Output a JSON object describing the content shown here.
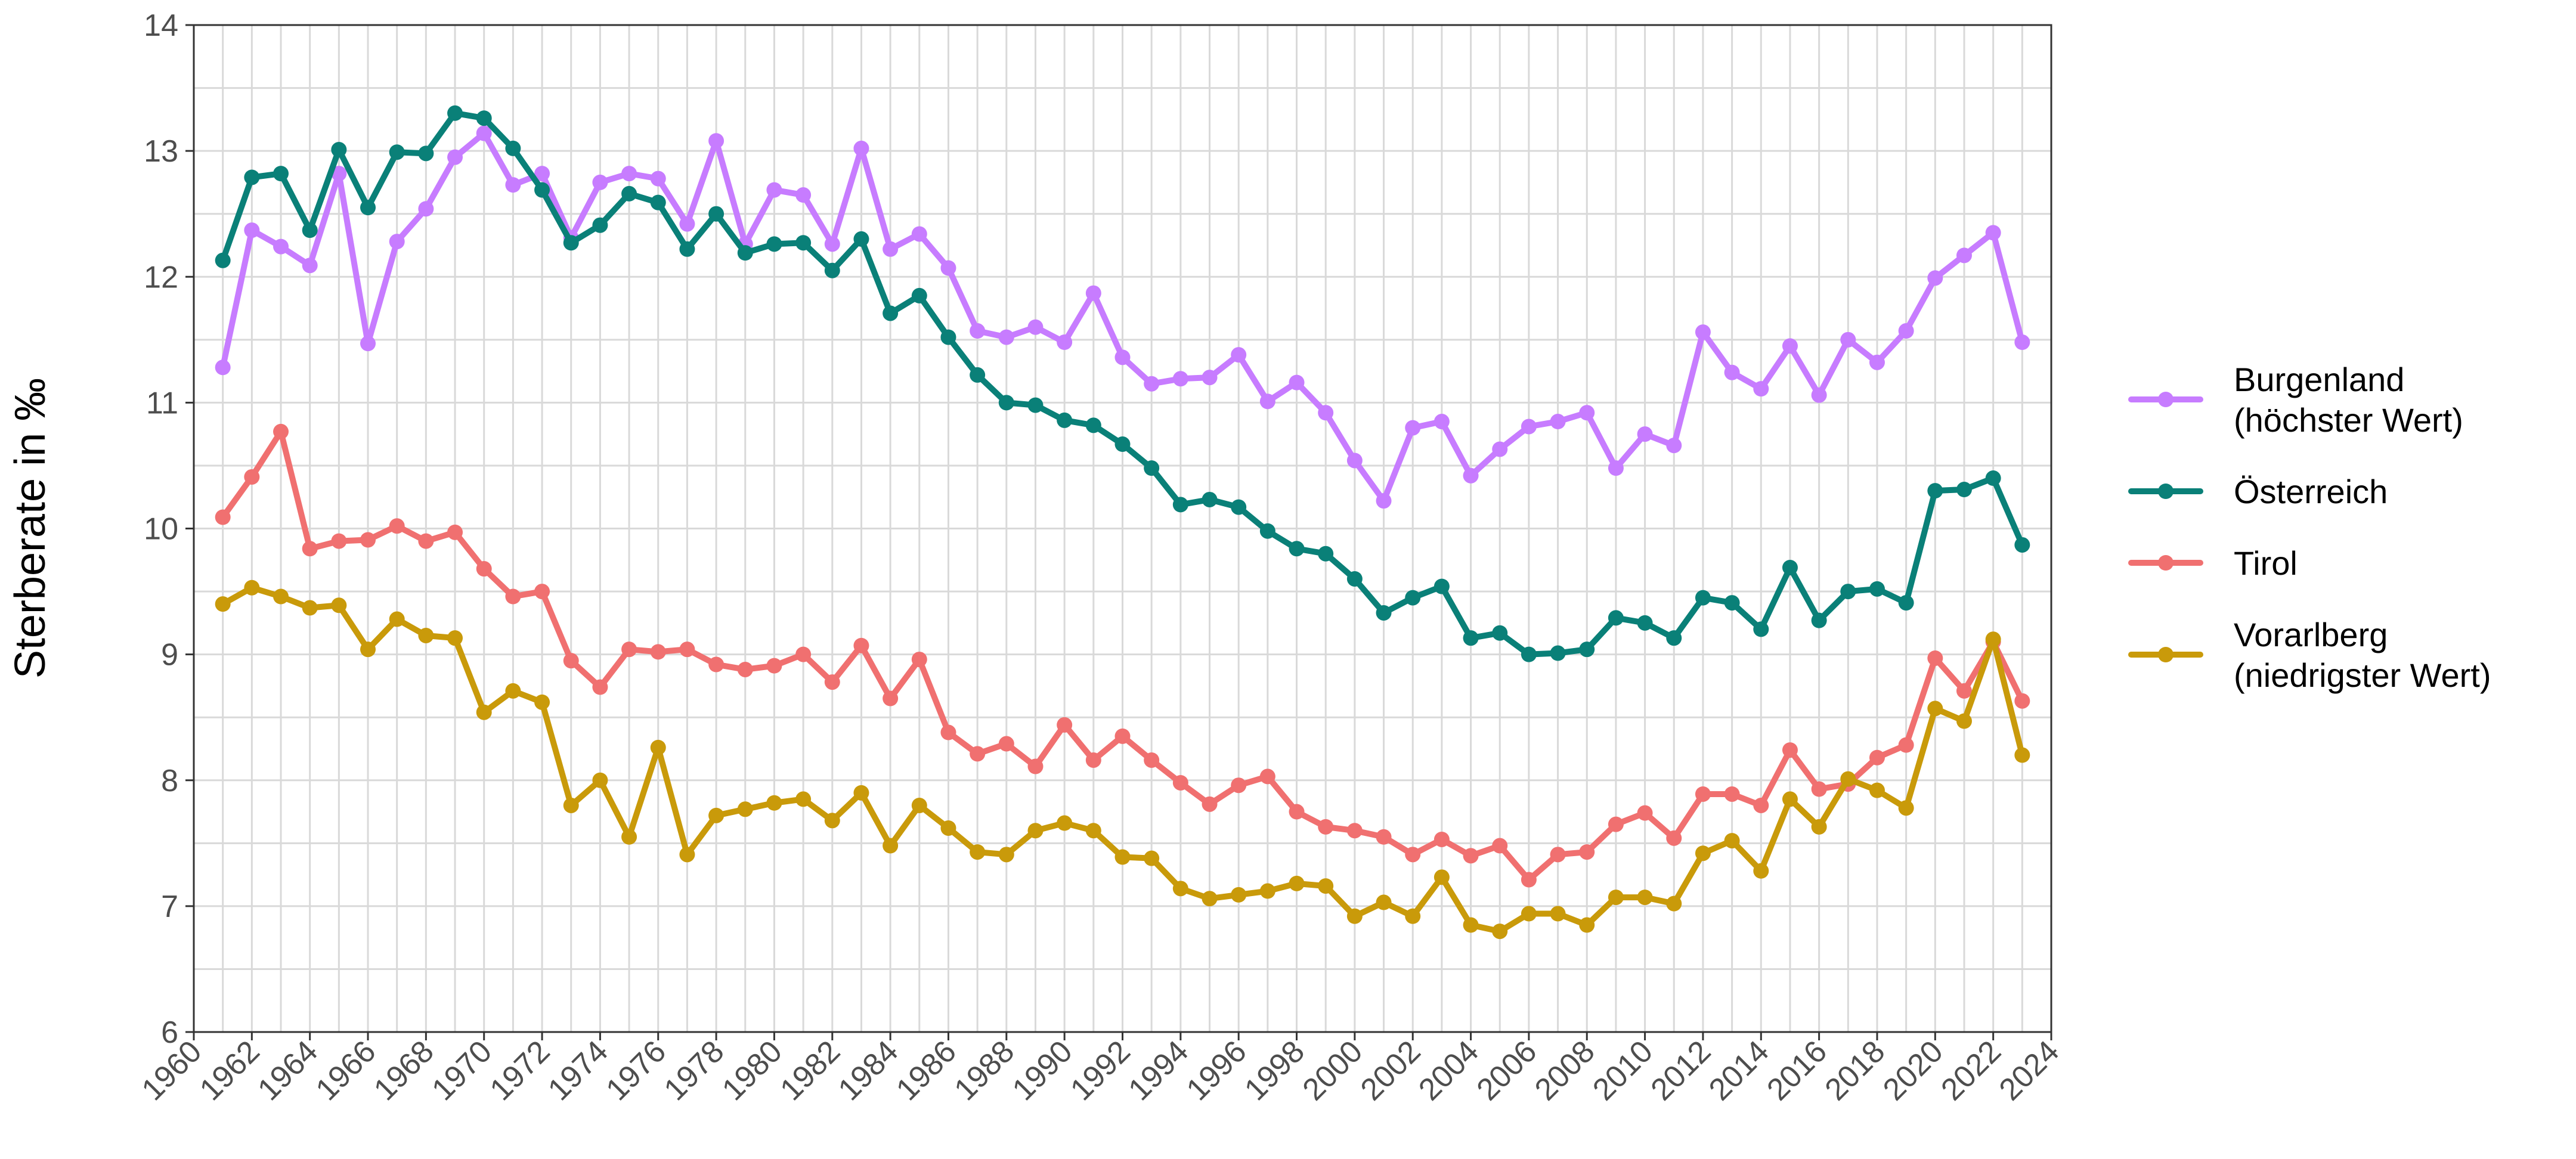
{
  "chart_data": {
    "type": "line",
    "title": "",
    "xlabel": "",
    "ylabel": "Sterberate in ‰",
    "xlim": [
      1960,
      2024
    ],
    "ylim": [
      6,
      14
    ],
    "x_ticks": [
      "1960",
      "1962",
      "1964",
      "1966",
      "1968",
      "1970",
      "1972",
      "1974",
      "1976",
      "1978",
      "1980",
      "1982",
      "1984",
      "1986",
      "1988",
      "1990",
      "1992",
      "1994",
      "1996",
      "1998",
      "2000",
      "2002",
      "2004",
      "2006",
      "2008",
      "2010",
      "2012",
      "2014",
      "2016",
      "2018",
      "2020",
      "2022",
      "2024"
    ],
    "y_ticks": [
      "6",
      "7",
      "8",
      "9",
      "10",
      "11",
      "12",
      "13",
      "14"
    ],
    "grid": true,
    "legend_position": "right",
    "x": [
      1961,
      1962,
      1963,
      1964,
      1965,
      1966,
      1967,
      1968,
      1969,
      1970,
      1971,
      1972,
      1973,
      1974,
      1975,
      1976,
      1977,
      1978,
      1979,
      1980,
      1981,
      1982,
      1983,
      1984,
      1985,
      1986,
      1987,
      1988,
      1989,
      1990,
      1991,
      1992,
      1993,
      1994,
      1995,
      1996,
      1997,
      1998,
      1999,
      2000,
      2001,
      2002,
      2003,
      2004,
      2005,
      2006,
      2007,
      2008,
      2009,
      2010,
      2011,
      2012,
      2013,
      2014,
      2015,
      2016,
      2017,
      2018,
      2019,
      2020,
      2021,
      2022,
      2023
    ],
    "series": [
      {
        "name": "Burgenland",
        "legend_lines": [
          "Burgenland",
          "(höchster Wert)"
        ],
        "color": "#c77cff",
        "values": [
          11.28,
          12.37,
          12.24,
          12.09,
          12.82,
          11.47,
          12.28,
          12.54,
          12.95,
          13.14,
          12.73,
          12.82,
          12.31,
          12.75,
          12.82,
          12.78,
          12.42,
          13.08,
          12.26,
          12.69,
          12.65,
          12.26,
          13.02,
          12.22,
          12.34,
          12.07,
          11.57,
          11.52,
          11.6,
          11.48,
          11.87,
          11.36,
          11.15,
          11.19,
          11.2,
          11.38,
          11.01,
          11.16,
          10.92,
          10.54,
          10.22,
          10.8,
          10.85,
          10.42,
          10.63,
          10.81,
          10.85,
          10.92,
          10.48,
          10.75,
          10.66,
          11.56,
          11.24,
          11.11,
          11.45,
          11.06,
          11.5,
          11.32,
          11.57,
          11.99,
          12.17,
          12.35,
          11.48
        ]
      },
      {
        "name": "Österreich",
        "legend_lines": [
          "Österreich"
        ],
        "color": "#0a8078",
        "values": [
          12.13,
          12.79,
          12.82,
          12.37,
          13.01,
          12.55,
          12.99,
          12.98,
          13.3,
          13.26,
          13.02,
          12.69,
          12.27,
          12.41,
          12.66,
          12.59,
          12.22,
          12.5,
          12.19,
          12.26,
          12.27,
          12.05,
          12.3,
          11.71,
          11.85,
          11.52,
          11.22,
          11.0,
          10.98,
          10.86,
          10.82,
          10.67,
          10.48,
          10.19,
          10.23,
          10.17,
          9.98,
          9.84,
          9.8,
          9.6,
          9.33,
          9.45,
          9.54,
          9.13,
          9.17,
          9.0,
          9.01,
          9.04,
          9.29,
          9.25,
          9.13,
          9.45,
          9.41,
          9.2,
          9.69,
          9.27,
          9.5,
          9.52,
          9.41,
          10.3,
          10.31,
          10.4,
          9.87
        ]
      },
      {
        "name": "Tirol",
        "legend_lines": [
          "Tirol"
        ],
        "color": "#f07070",
        "values": [
          10.09,
          10.41,
          10.77,
          9.84,
          9.9,
          9.91,
          10.02,
          9.9,
          9.97,
          9.68,
          9.46,
          9.5,
          8.95,
          8.74,
          9.04,
          9.02,
          9.04,
          8.92,
          8.88,
          8.91,
          9.0,
          8.78,
          9.07,
          8.65,
          8.96,
          8.38,
          8.21,
          8.29,
          8.11,
          8.44,
          8.16,
          8.35,
          8.16,
          7.98,
          7.81,
          7.96,
          8.03,
          7.75,
          7.63,
          7.6,
          7.55,
          7.41,
          7.53,
          7.4,
          7.48,
          7.21,
          7.41,
          7.43,
          7.65,
          7.74,
          7.54,
          7.89,
          7.89,
          7.8,
          8.24,
          7.93,
          7.97,
          8.18,
          8.28,
          8.97,
          8.71,
          9.1,
          8.63
        ]
      },
      {
        "name": "Vorarlberg",
        "legend_lines": [
          "Vorarlberg",
          "(niedrigster Wert)"
        ],
        "color": "#c99a0a",
        "values": [
          9.4,
          9.53,
          9.46,
          9.37,
          9.39,
          9.04,
          9.28,
          9.15,
          9.13,
          8.54,
          8.71,
          8.62,
          7.8,
          8.0,
          7.55,
          8.26,
          7.41,
          7.72,
          7.77,
          7.82,
          7.85,
          7.68,
          7.9,
          7.48,
          7.8,
          7.62,
          7.43,
          7.41,
          7.6,
          7.66,
          7.6,
          7.39,
          7.38,
          7.14,
          7.06,
          7.09,
          7.12,
          7.18,
          7.16,
          6.92,
          7.03,
          6.92,
          7.23,
          6.85,
          6.8,
          6.94,
          6.94,
          6.85,
          7.07,
          7.07,
          7.02,
          7.42,
          7.52,
          7.28,
          7.85,
          7.63,
          8.01,
          7.92,
          7.78,
          8.57,
          8.47,
          9.12,
          8.2
        ]
      }
    ]
  }
}
